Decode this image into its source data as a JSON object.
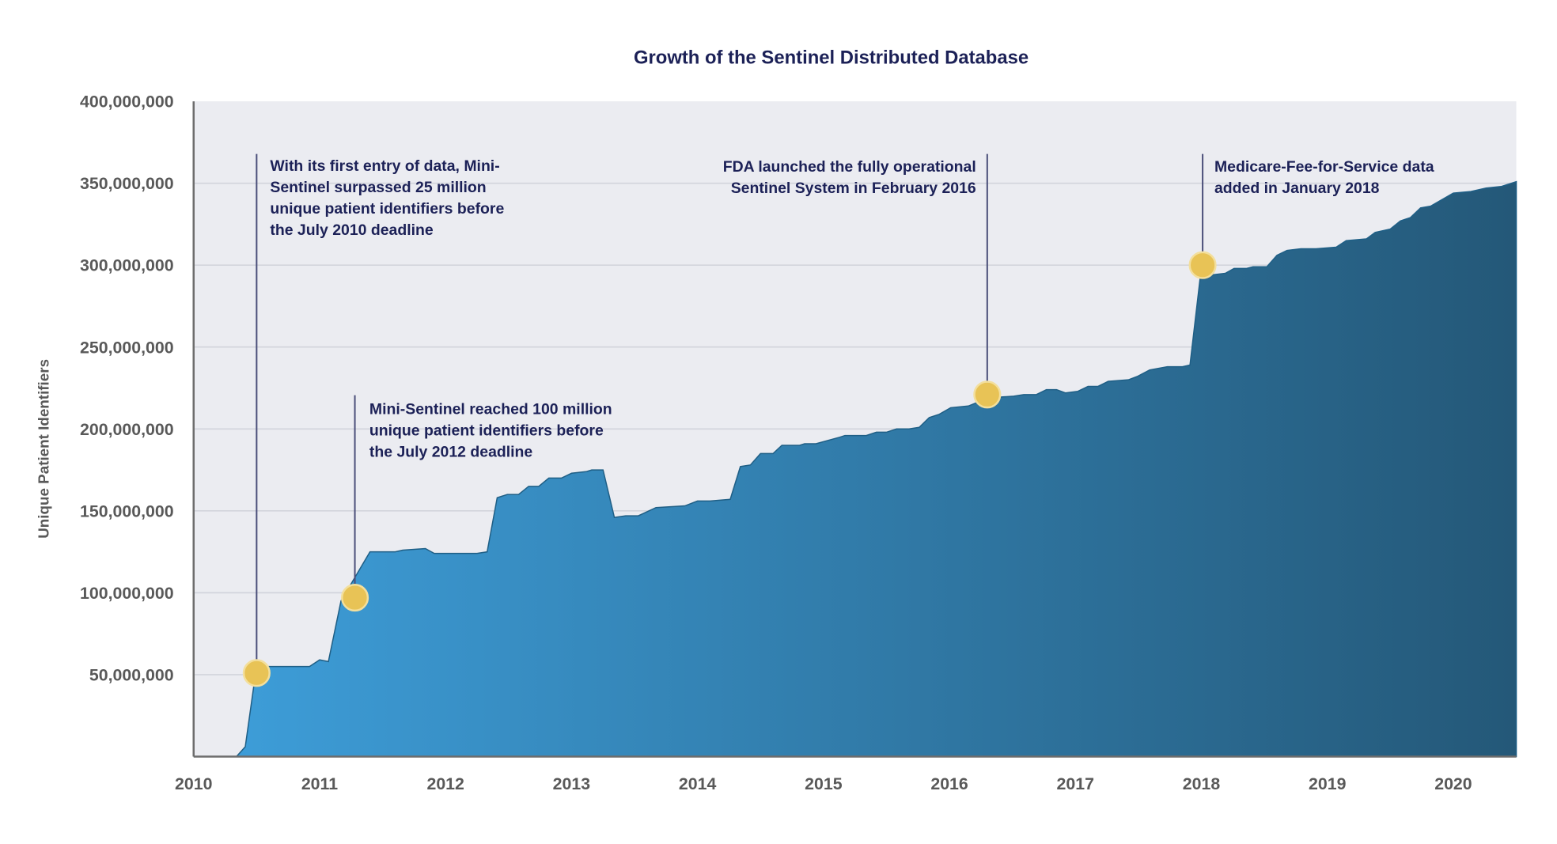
{
  "chart_data": {
    "type": "area",
    "title": "Growth of the Sentinel Distributed Database",
    "xlabel": "",
    "ylabel": "Unique Patient Identifiers",
    "xlim": [
      2010,
      2020.5
    ],
    "ylim": [
      0,
      400000000
    ],
    "grid": true,
    "x_ticks": [
      "2010",
      "2011",
      "2012",
      "2013",
      "2014",
      "2015",
      "2016",
      "2017",
      "2018",
      "2019",
      "2020"
    ],
    "y_ticks": [
      {
        "value": 50000000,
        "label": "50,000,000"
      },
      {
        "value": 100000000,
        "label": "100,000,000"
      },
      {
        "value": 150000000,
        "label": "150,000,000"
      },
      {
        "value": 200000000,
        "label": "200,000,000"
      },
      {
        "value": 250000000,
        "label": "250,000,000"
      },
      {
        "value": 300000000,
        "label": "300,000,000"
      },
      {
        "value": 350000000,
        "label": "350,000,000"
      },
      {
        "value": 400000000,
        "label": "400,000,000"
      }
    ],
    "colors": {
      "fill_start": "#3e9fdb",
      "fill_end": "#245878",
      "plot_bg": "#ebecf1",
      "marker": "#e8c356",
      "annotation": "#1c2157"
    },
    "series_unit": "millions",
    "x": [
      2010,
      2010.34,
      2010.41,
      2010.49,
      2010.53,
      2010.92,
      2011.0,
      2011.07,
      2011.17,
      2011.4,
      2011.6,
      2011.66,
      2011.84,
      2011.91,
      2012.25,
      2012.33,
      2012.41,
      2012.49,
      2012.58,
      2012.66,
      2012.74,
      2012.82,
      2012.92,
      2013.0,
      2013.12,
      2013.16,
      2013.25,
      2013.34,
      2013.43,
      2013.53,
      2013.67,
      2013.9,
      2014.0,
      2014.1,
      2014.26,
      2014.34,
      2014.42,
      2014.5,
      2014.6,
      2014.67,
      2014.81,
      2014.85,
      2014.94,
      2015.13,
      2015.17,
      2015.34,
      2015.42,
      2015.5,
      2015.58,
      2015.68,
      2015.76,
      2015.84,
      2015.92,
      2016.01,
      2016.15,
      2016.31,
      2016.51,
      2016.59,
      2016.69,
      2016.77,
      2016.85,
      2016.92,
      2017.02,
      2017.1,
      2017.18,
      2017.26,
      2017.42,
      2017.49,
      2017.59,
      2017.73,
      2017.85,
      2017.91,
      2017.99,
      2018.08,
      2018.19,
      2018.26,
      2018.36,
      2018.41,
      2018.52,
      2018.6,
      2018.68,
      2018.79,
      2018.91,
      2019.07,
      2019.15,
      2019.31,
      2019.38,
      2019.5,
      2019.58,
      2019.66,
      2019.74,
      2019.82,
      2020.0,
      2020.14,
      2020.26,
      2020.38,
      2020.5
    ],
    "values": [
      0,
      0,
      6,
      50,
      55,
      55,
      59,
      58,
      95,
      125,
      125,
      126,
      127,
      124,
      124,
      125,
      158,
      160,
      160,
      165,
      165,
      170,
      170,
      173,
      174,
      175,
      175,
      146,
      147,
      147,
      152,
      153,
      156,
      156,
      157,
      177,
      178,
      185,
      185,
      190,
      190,
      191,
      191,
      195,
      196,
      196,
      198,
      198,
      200,
      200,
      201,
      207,
      209,
      213,
      214,
      219,
      220,
      221,
      221,
      224,
      224,
      222,
      223,
      226,
      226,
      229,
      230,
      232,
      236,
      238,
      238,
      239,
      292,
      294,
      295,
      298,
      298,
      299,
      299,
      306,
      309,
      310,
      310,
      311,
      315,
      316,
      320,
      322,
      327,
      329,
      335,
      336,
      344,
      345,
      347,
      348,
      351
    ],
    "annotations": [
      {
        "x": 2010.5,
        "value": 51,
        "lines": [
          "With its first entry of data, Mini-",
          "Sentinel surpassed 25 million",
          "unique patient identifiers before",
          "the July 2010 deadline"
        ]
      },
      {
        "x": 2011.28,
        "value": 97,
        "lines": [
          "Mini-Sentinel reached 100 million",
          "unique patient identifiers before",
          "the July 2012 deadline"
        ]
      },
      {
        "x": 2016.3,
        "value": 221,
        "lines": [
          "FDA launched the fully operational",
          "Sentinel System in February 2016"
        ]
      },
      {
        "x": 2018.01,
        "value": 300,
        "lines": [
          "Medicare-Fee-for-Service data",
          "added in January 2018"
        ]
      }
    ]
  }
}
